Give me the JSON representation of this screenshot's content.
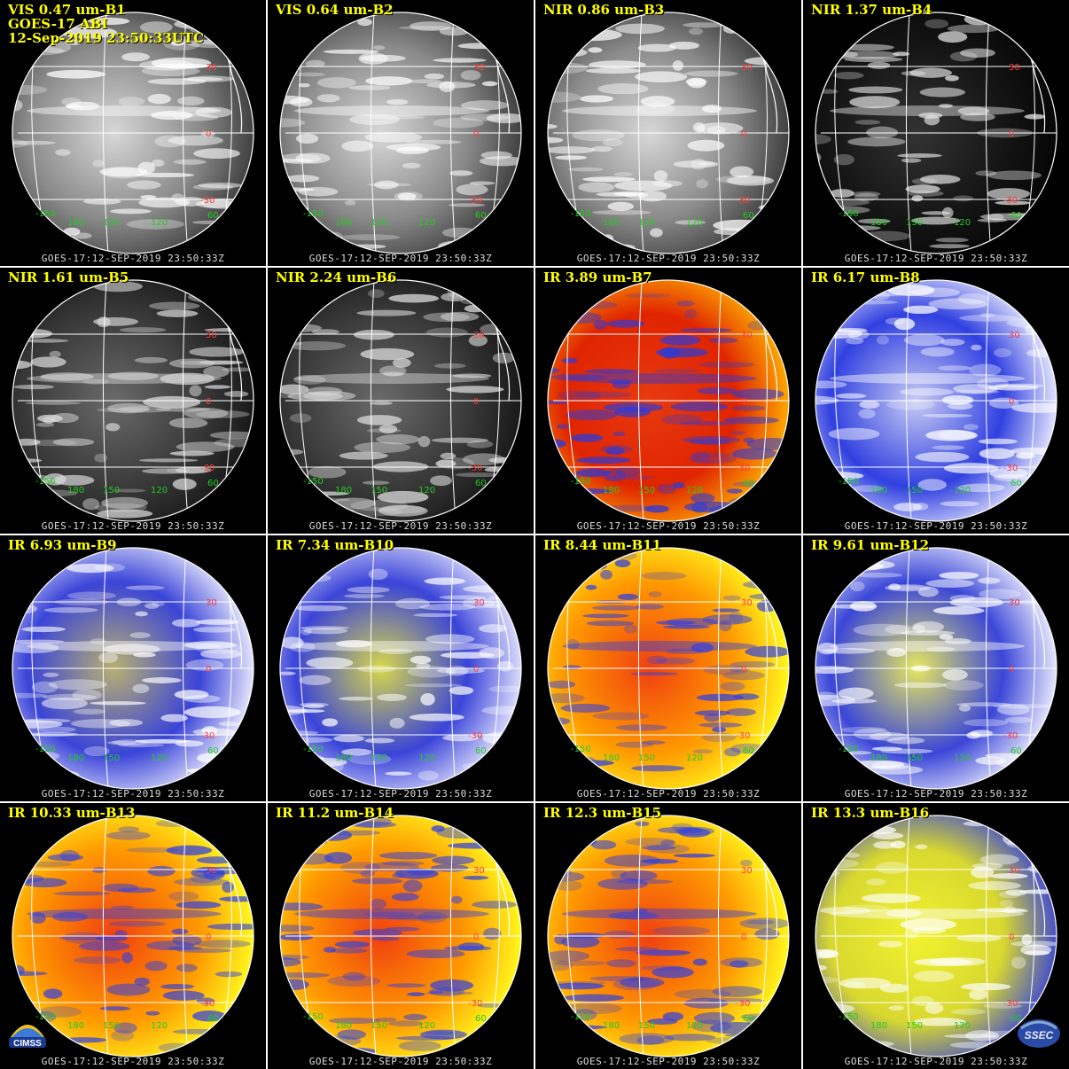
{
  "header_lines": [
    "GOES-17 ABI",
    "12-Sep-2019 23:50:33UTC"
  ],
  "timestamp": "GOES-17:12-SEP-2019 23:50:33Z",
  "lat_labels": [
    "30",
    "0",
    "-30"
  ],
  "lon_labels": [
    "-150",
    "180",
    "150",
    "120",
    "60"
  ],
  "colors": {
    "title": "#ffff00",
    "lat_label": "#ff3b3b",
    "lon_label": "#22cc22",
    "grid": "#ffffff",
    "divider": "#ffffff"
  },
  "logos": {
    "left": "CIMSS",
    "right": "SSEC"
  },
  "panels": [
    {
      "title": "VIS 0.47 um-B1",
      "scheme": "gray"
    },
    {
      "title": "VIS 0.64 um-B2",
      "scheme": "gray"
    },
    {
      "title": "NIR 0.86 um-B3",
      "scheme": "gray"
    },
    {
      "title": "NIR 1.37 um-B4",
      "scheme": "dark"
    },
    {
      "title": "NIR 1.61 um-B5",
      "scheme": "darkgray"
    },
    {
      "title": "NIR 2.24 um-B6",
      "scheme": "darkgray"
    },
    {
      "title": "IR 3.89 um-B7",
      "scheme": "hot"
    },
    {
      "title": "IR 6.17 um-B8",
      "scheme": "wv"
    },
    {
      "title": "IR 6.93 um-B9",
      "scheme": "wv2"
    },
    {
      "title": "IR 7.34 um-B10",
      "scheme": "wv3"
    },
    {
      "title": "IR 8.44 um-B11",
      "scheme": "ir"
    },
    {
      "title": "IR 9.61 um-B12",
      "scheme": "oz"
    },
    {
      "title": "IR 10.33 um-B13",
      "scheme": "ir"
    },
    {
      "title": "IR 11.2 um-B14",
      "scheme": "ir"
    },
    {
      "title": "IR 12.3 um-B15",
      "scheme": "ir"
    },
    {
      "title": "IR 13.3 um-B16",
      "scheme": "co2"
    }
  ]
}
